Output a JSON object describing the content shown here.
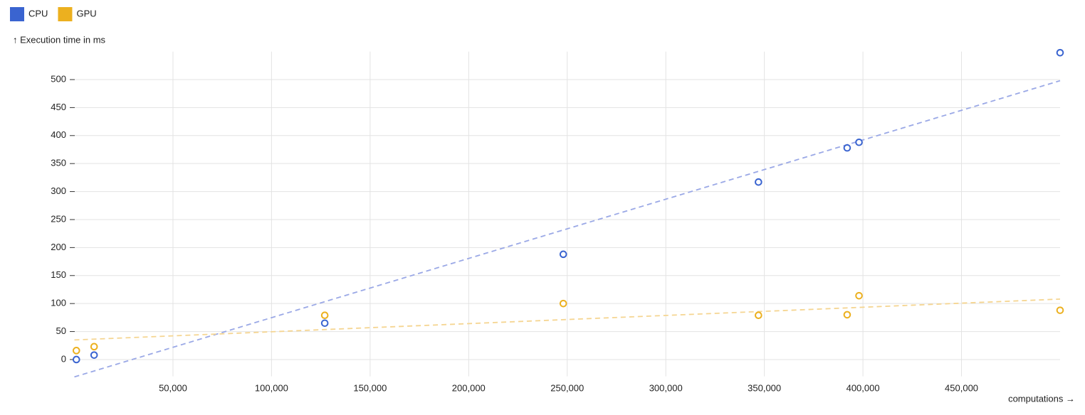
{
  "chart_data": {
    "type": "scatter",
    "y_label": "↑ Execution time in ms",
    "x_label": "computations →",
    "xlim": [
      0,
      500000
    ],
    "ylim": [
      -30,
      550
    ],
    "xticks": [
      {
        "value": 50000,
        "label": "50,000"
      },
      {
        "value": 100000,
        "label": "100,000"
      },
      {
        "value": 150000,
        "label": "150,000"
      },
      {
        "value": 200000,
        "label": "200,000"
      },
      {
        "value": 250000,
        "label": "250,000"
      },
      {
        "value": 300000,
        "label": "300,000"
      },
      {
        "value": 350000,
        "label": "350,000"
      },
      {
        "value": 400000,
        "label": "400,000"
      },
      {
        "value": 450000,
        "label": "450,000"
      }
    ],
    "yticks": [
      0,
      50,
      100,
      150,
      200,
      250,
      300,
      350,
      400,
      450,
      500
    ],
    "grid": true,
    "legend": "top-left",
    "series": [
      {
        "name": "CPU",
        "color": "#3a64d0",
        "x": [
          1000,
          10000,
          127000,
          248000,
          347000,
          392000,
          398000,
          500000
        ],
        "values": [
          0,
          8,
          65,
          188,
          317,
          378,
          388,
          548
        ],
        "trend": {
          "color": "#9aa8e6",
          "x": [
            0,
            500000
          ],
          "values": [
            -31,
            498
          ]
        }
      },
      {
        "name": "GPU",
        "color": "#ecb01f",
        "x": [
          1000,
          10000,
          127000,
          248000,
          347000,
          392000,
          398000,
          500000
        ],
        "values": [
          16,
          23,
          79,
          100,
          79,
          80,
          114,
          88
        ],
        "trend": {
          "color": "#f5d591",
          "x": [
            0,
            500000
          ],
          "values": [
            35,
            108
          ]
        }
      }
    ]
  }
}
